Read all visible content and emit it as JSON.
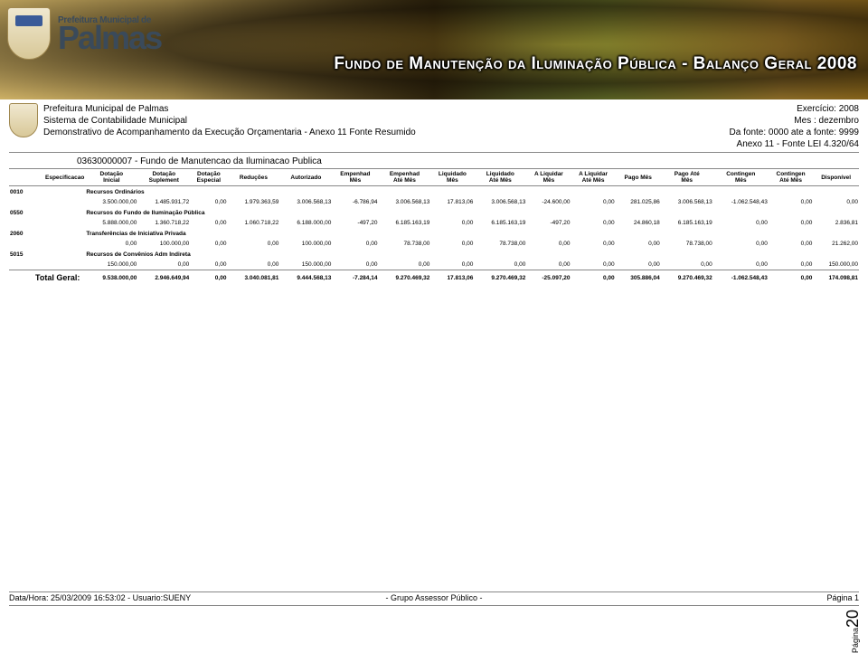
{
  "banner": {
    "prefix": "Prefeitura Municipal de",
    "city": "Palmas",
    "title": "Fundo de Manutenção da Iluminação Pública - Balanço Geral 2008"
  },
  "meta": {
    "line1": "Prefeitura Municipal de Palmas",
    "line2": "Sistema de Contabilidade Municipal",
    "line3": "Demonstrativo de Acompanhamento da Execução Orçamentaria - Anexo 11 Fonte Resumido",
    "right1": "Exercício: 2008",
    "right2": "Mes : dezembro",
    "right3": "Da fonte: 0000 ate a fonte: 9999",
    "right4": "Anexo 11 - Fonte LEI 4.320/64",
    "org": "03630000007 - Fundo de Manutencao da Iluminacao Publica"
  },
  "columns": [
    "Especificacao",
    "Dotação\nInicial",
    "Dotação\nSuplement",
    "Dotação\nEspecial",
    "Reduções",
    "Autorizado",
    "Empenhad\nMês",
    "Empenhad\nAté Mês",
    "Liquidado\nMês",
    "Liquidado\nAté Mês",
    "A Liquidar\nMês",
    "A Liquidar\nAté Mês",
    "Pago Mês",
    "Pago Até\nMês",
    "Contingen\nMês",
    "Contingen\nAté Mês",
    "Disponível"
  ],
  "groups": [
    {
      "code": "0010",
      "desc": "Recursos Ordinários",
      "row": [
        "",
        "3.500.000,00",
        "1.485.931,72",
        "0,00",
        "1.979.363,59",
        "3.006.568,13",
        "-6.786,94",
        "3.006.568,13",
        "17.813,06",
        "3.006.568,13",
        "-24.600,00",
        "0,00",
        "281.025,86",
        "3.006.568,13",
        "-1.062.548,43",
        "0,00",
        "0,00"
      ]
    },
    {
      "code": "0550",
      "desc": "Recursos do Fundo de Iluminação Pública",
      "row": [
        "",
        "5.888.000,00",
        "1.360.718,22",
        "0,00",
        "1.060.718,22",
        "6.188.000,00",
        "-497,20",
        "6.185.163,19",
        "0,00",
        "6.185.163,19",
        "-497,20",
        "0,00",
        "24.860,18",
        "6.185.163,19",
        "0,00",
        "0,00",
        "2.836,81"
      ]
    },
    {
      "code": "2060",
      "desc": "Transferências de Iniciativa Privada",
      "row": [
        "",
        "0,00",
        "100.000,00",
        "0,00",
        "0,00",
        "100.000,00",
        "0,00",
        "78.738,00",
        "0,00",
        "78.738,00",
        "0,00",
        "0,00",
        "0,00",
        "78.738,00",
        "0,00",
        "0,00",
        "21.262,00"
      ]
    },
    {
      "code": "5015",
      "desc": "Recursos de Convênios Adm Indireta",
      "row": [
        "",
        "150.000,00",
        "0,00",
        "0,00",
        "0,00",
        "150.000,00",
        "0,00",
        "0,00",
        "0,00",
        "0,00",
        "0,00",
        "0,00",
        "0,00",
        "0,00",
        "0,00",
        "0,00",
        "150.000,00"
      ]
    }
  ],
  "total": {
    "label": "Total Geral:",
    "row": [
      "9.538.000,00",
      "2.946.649,94",
      "0,00",
      "3.040.081,81",
      "9.444.568,13",
      "-7.284,14",
      "9.270.469,32",
      "17.813,06",
      "9.270.469,32",
      "-25.097,20",
      "0,00",
      "305.886,04",
      "9.270.469,32",
      "-1.062.548,43",
      "0,00",
      "174.098,81"
    ]
  },
  "footer": {
    "left": "Data/Hora: 25/03/2009 16:53:02 - Usuario:SUENY",
    "center": "- Grupo Assessor Público -",
    "right": "Página 1",
    "page": "Página",
    "pageNum": "20"
  }
}
